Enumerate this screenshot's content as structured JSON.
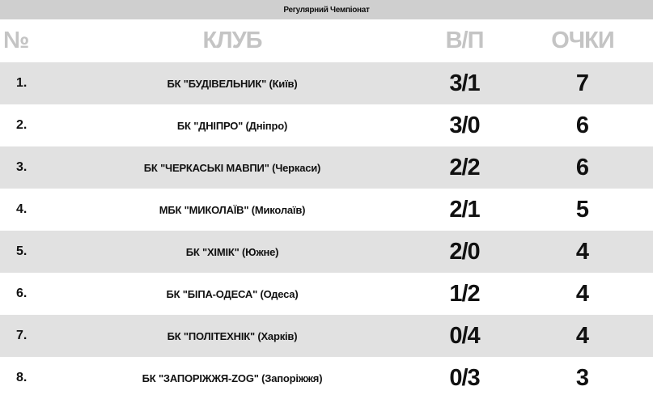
{
  "title": "Регулярний Чемпіонат",
  "headers": {
    "num": "№",
    "club": "КЛУБ",
    "wl": "В/П",
    "points": "ОЧКИ"
  },
  "colors": {
    "header_text": "#c4c4c4",
    "alt_row": "#e1e1e1",
    "top_bar": "#cfcfcf"
  },
  "rows": [
    {
      "num": "1.",
      "club": "БК \"БУДІВЕЛЬНИК\" (Київ)",
      "wl": "3/1",
      "points": "7"
    },
    {
      "num": "2.",
      "club": "БК \"ДНІПРО\" (Дніпро)",
      "wl": "3/0",
      "points": "6"
    },
    {
      "num": "3.",
      "club": "БК \"ЧЕРКАСЬКІ МАВПИ\" (Черкаси)",
      "wl": "2/2",
      "points": "6"
    },
    {
      "num": "4.",
      "club": "МБК \"МИКОЛАЇВ\" (Миколаїв)",
      "wl": "2/1",
      "points": "5"
    },
    {
      "num": "5.",
      "club": "БК \"ХІМІК\" (Южне)",
      "wl": "2/0",
      "points": "4"
    },
    {
      "num": "6.",
      "club": "БК \"БІПА-ОДЕСА\" (Одеса)",
      "wl": "1/2",
      "points": "4"
    },
    {
      "num": "7.",
      "club": "БК \"ПОЛІТЕХНІК\" (Харків)",
      "wl": "0/4",
      "points": "4"
    },
    {
      "num": "8.",
      "club": "БК \"ЗАПОРІЖЖЯ-ZOG\" (Запоріжжя)",
      "wl": "0/3",
      "points": "3"
    }
  ]
}
